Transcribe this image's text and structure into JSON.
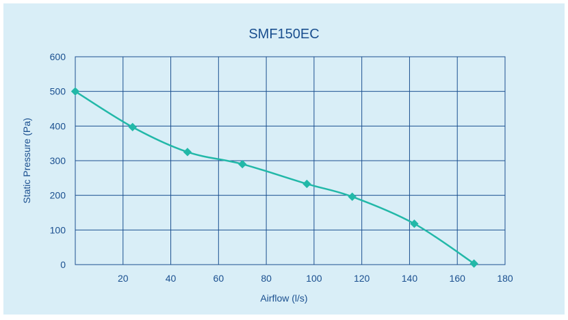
{
  "colors": {
    "background": "#d9eef7",
    "grid": "#1a4f8f",
    "text": "#1a4f8f",
    "series": "#22b8a8"
  },
  "chart_data": {
    "type": "line",
    "title": "SMF150EC",
    "xlabel": "Airflow (l/s)",
    "ylabel": "Static Pressure (Pa)",
    "xlim": [
      0,
      180
    ],
    "ylim": [
      0,
      600
    ],
    "xticks": [
      20,
      40,
      60,
      80,
      100,
      120,
      140,
      160,
      180
    ],
    "yticks": [
      0,
      100,
      200,
      300,
      400,
      500,
      600
    ],
    "grid": true,
    "marker": "diamond",
    "smooth": true,
    "series": [
      {
        "x": [
          0,
          24,
          47,
          70,
          97,
          116,
          142,
          167
        ],
        "y": [
          500,
          397,
          325,
          290,
          233,
          196,
          118,
          3
        ]
      }
    ]
  }
}
